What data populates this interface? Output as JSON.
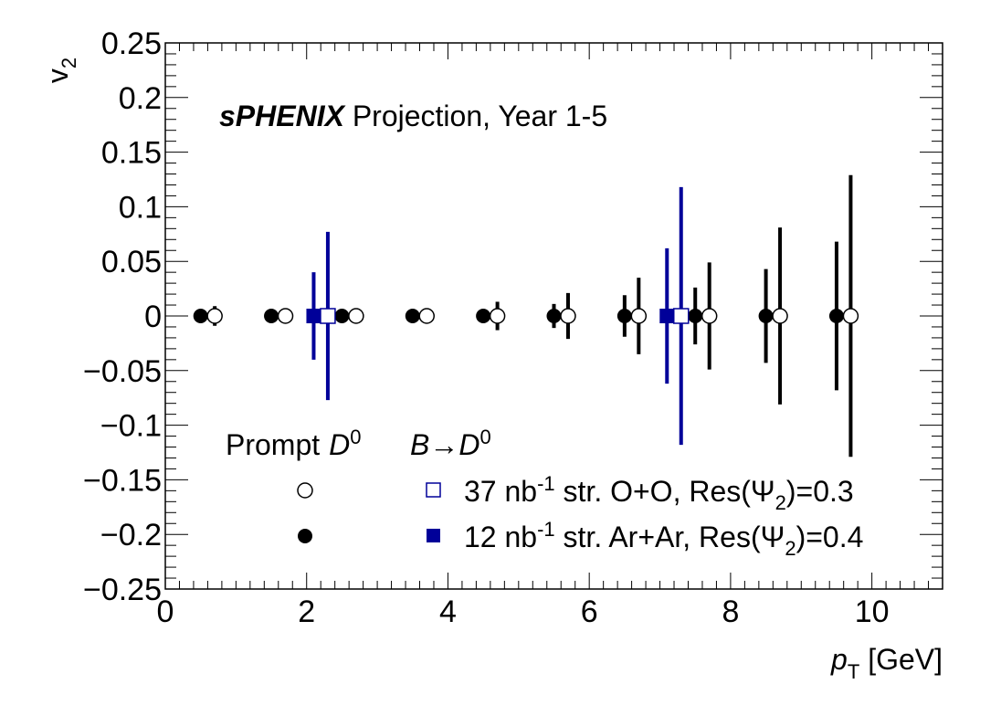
{
  "chart_data": {
    "type": "scatter",
    "title": "",
    "brand": "sPHENIX",
    "annotation": " Projection, Year 1-5",
    "xlabel": {
      "symbol": "p",
      "sub": "T",
      "unit": " [GeV]"
    },
    "ylabel": {
      "symbol": "v",
      "sub": "2"
    },
    "xlim": [
      0,
      11
    ],
    "ylim": [
      -0.25,
      0.25
    ],
    "xticks": [
      {
        "v": 0,
        "label": "0"
      },
      {
        "v": 2,
        "label": "2"
      },
      {
        "v": 4,
        "label": "4"
      },
      {
        "v": 6,
        "label": "6"
      },
      {
        "v": 8,
        "label": "8"
      },
      {
        "v": 10,
        "label": "10"
      }
    ],
    "yticks": [
      {
        "v": 0.25,
        "label": "0.25"
      },
      {
        "v": 0.2,
        "label": "0.2"
      },
      {
        "v": 0.15,
        "label": "0.15"
      },
      {
        "v": 0.1,
        "label": "0.1"
      },
      {
        "v": 0.05,
        "label": "0.05"
      },
      {
        "v": 0,
        "label": "0"
      },
      {
        "v": -0.05,
        "label": "−0.05"
      },
      {
        "v": -0.1,
        "label": "−0.1"
      },
      {
        "v": -0.15,
        "label": "−0.15"
      },
      {
        "v": -0.2,
        "label": "−0.2"
      },
      {
        "v": -0.25,
        "label": "−0.25"
      }
    ],
    "grid": false,
    "legend_placement": "bottom-left",
    "legend": {
      "header_prompt": "Prompt",
      "header_prompt_sym": "D",
      "header_prompt_sup": "0",
      "header_b": "B→D",
      "header_b_sup": "0",
      "row_oo": {
        "pre": "37 nb",
        "sup": "-1",
        "mid": " str. O+O, Res(Ψ",
        "sub": "2",
        "post": ")=0.3"
      },
      "row_arar": {
        "pre": "12 nb",
        "sup": "-1",
        "mid": " str. Ar+Ar, Res(Ψ",
        "sub": "2",
        "post": ")=0.4"
      }
    },
    "colors": {
      "prompt": "#000000",
      "b_to_d": "#000099"
    },
    "series": [
      {
        "marker": "filled-circle",
        "color": "#000000",
        "points": [
          {
            "x": 0.5,
            "y": 0,
            "err": 0.004
          },
          {
            "x": 1.5,
            "y": 0,
            "err": 0.002
          },
          {
            "x": 2.5,
            "y": 0,
            "err": 0.002
          },
          {
            "x": 3.5,
            "y": 0,
            "err": 0.002
          },
          {
            "x": 4.5,
            "y": 0,
            "err": 0.003
          },
          {
            "x": 5.5,
            "y": 0,
            "err": 0.011
          },
          {
            "x": 6.5,
            "y": 0,
            "err": 0.019
          },
          {
            "x": 7.5,
            "y": 0,
            "err": 0.026
          },
          {
            "x": 8.5,
            "y": 0,
            "err": 0.043
          },
          {
            "x": 9.5,
            "y": 0,
            "err": 0.068
          }
        ]
      },
      {
        "marker": "open-circle",
        "color": "#000000",
        "points": [
          {
            "x": 0.7,
            "y": 0,
            "err": 0.009
          },
          {
            "x": 1.7,
            "y": 0,
            "err": 0.004
          },
          {
            "x": 2.7,
            "y": 0,
            "err": 0.004
          },
          {
            "x": 3.7,
            "y": 0,
            "err": 0.004
          },
          {
            "x": 4.7,
            "y": 0,
            "err": 0.013
          },
          {
            "x": 5.7,
            "y": 0,
            "err": 0.021
          },
          {
            "x": 6.7,
            "y": 0,
            "err": 0.035
          },
          {
            "x": 7.7,
            "y": 0,
            "err": 0.049
          },
          {
            "x": 8.7,
            "y": 0,
            "err": 0.081
          },
          {
            "x": 9.7,
            "y": 0,
            "err": 0.129
          }
        ]
      },
      {
        "marker": "filled-square",
        "color": "#000099",
        "points": [
          {
            "x": 2.1,
            "y": 0,
            "err": 0.04
          },
          {
            "x": 7.1,
            "y": 0,
            "err": 0.062
          }
        ]
      },
      {
        "marker": "open-square",
        "color": "#000099",
        "points": [
          {
            "x": 2.3,
            "y": 0,
            "err": 0.077
          },
          {
            "x": 7.3,
            "y": 0,
            "err": 0.118
          }
        ]
      }
    ]
  }
}
